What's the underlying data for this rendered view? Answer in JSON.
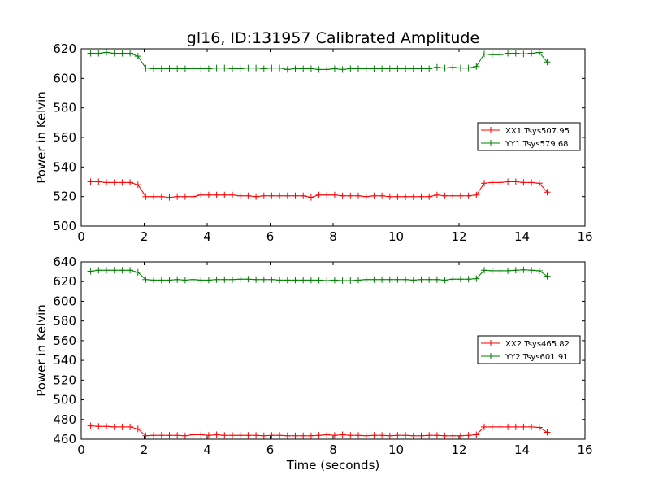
{
  "chart_data": [
    {
      "type": "line",
      "title": "gl16, ID:131957 Calibrated Amplitude",
      "xlabel": "",
      "ylabel": "Power in Kelvin",
      "xlim": [
        0,
        16
      ],
      "ylim": [
        500,
        620
      ],
      "xticks": [
        "0",
        "2",
        "4",
        "6",
        "8",
        "10",
        "12",
        "14",
        "16"
      ],
      "yticks": [
        "500",
        "520",
        "540",
        "560",
        "580",
        "600",
        "620"
      ],
      "legend_position": "center-right",
      "x": [
        0.3,
        0.55,
        0.8,
        1.05,
        1.3,
        1.55,
        1.8,
        2.05,
        2.3,
        2.55,
        2.8,
        3.05,
        3.3,
        3.55,
        3.8,
        4.05,
        4.3,
        4.55,
        4.8,
        5.05,
        5.3,
        5.55,
        5.8,
        6.05,
        6.3,
        6.55,
        6.8,
        7.05,
        7.3,
        7.55,
        7.8,
        8.05,
        8.3,
        8.55,
        8.8,
        9.05,
        9.3,
        9.55,
        9.8,
        10.05,
        10.3,
        10.55,
        10.8,
        11.05,
        11.3,
        11.55,
        11.8,
        12.05,
        12.3,
        12.55,
        12.8,
        13.05,
        13.3,
        13.55,
        13.8,
        14.05,
        14.3,
        14.55,
        14.8
      ],
      "series": [
        {
          "name": "XX1 Tsys507.95",
          "color": "#ff0000",
          "values": [
            530,
            530,
            529.5,
            529.5,
            529.5,
            529.5,
            528,
            520,
            520,
            520,
            519.5,
            520,
            520,
            520,
            521,
            521,
            521,
            521,
            521,
            520.5,
            520.5,
            520,
            520.5,
            520.5,
            520.5,
            520.5,
            520.5,
            520.5,
            519.5,
            521,
            521,
            521,
            520.5,
            520.5,
            520.5,
            520,
            520.5,
            520.5,
            520,
            520,
            520,
            520,
            520,
            520,
            521,
            520.5,
            520.5,
            520.5,
            520.5,
            521,
            529,
            529.5,
            529.5,
            530,
            530,
            529.5,
            529.5,
            529,
            523
          ]
        },
        {
          "name": "YY1 Tsys579.68",
          "color": "#008000",
          "values": [
            617,
            617,
            617.5,
            617,
            617,
            617,
            615,
            607,
            606.5,
            606.5,
            606.5,
            606.5,
            606.5,
            606.5,
            606.5,
            606.5,
            607,
            607,
            606.5,
            606.5,
            607,
            607,
            606.5,
            607,
            607,
            606,
            606.5,
            606.5,
            606.5,
            606,
            606,
            606.5,
            606,
            606.5,
            606.5,
            606.5,
            606.5,
            606.5,
            606.5,
            606.5,
            606.5,
            606.5,
            606.5,
            606.5,
            607.5,
            607,
            607.5,
            607,
            607,
            608,
            616.5,
            616,
            616,
            617,
            617,
            616.5,
            617,
            617.5,
            611
          ]
        }
      ]
    },
    {
      "type": "line",
      "title": "",
      "xlabel": "Time (seconds)",
      "ylabel": "Power in Kelvin",
      "xlim": [
        0,
        16
      ],
      "ylim": [
        460,
        640
      ],
      "xticks": [
        "0",
        "2",
        "4",
        "6",
        "8",
        "10",
        "12",
        "14",
        "16"
      ],
      "yticks": [
        "460",
        "480",
        "500",
        "520",
        "540",
        "560",
        "580",
        "600",
        "620",
        "640"
      ],
      "legend_position": "center-right",
      "x": [
        0.3,
        0.55,
        0.8,
        1.05,
        1.3,
        1.55,
        1.8,
        2.05,
        2.3,
        2.55,
        2.8,
        3.05,
        3.3,
        3.55,
        3.8,
        4.05,
        4.3,
        4.55,
        4.8,
        5.05,
        5.3,
        5.55,
        5.8,
        6.05,
        6.3,
        6.55,
        6.8,
        7.05,
        7.3,
        7.55,
        7.8,
        8.05,
        8.3,
        8.55,
        8.8,
        9.05,
        9.3,
        9.55,
        9.8,
        10.05,
        10.3,
        10.55,
        10.8,
        11.05,
        11.3,
        11.55,
        11.8,
        12.05,
        12.3,
        12.55,
        12.8,
        13.05,
        13.3,
        13.55,
        13.8,
        14.05,
        14.3,
        14.55,
        14.8
      ],
      "series": [
        {
          "name": "XX2 Tsys465.82",
          "color": "#ff0000",
          "values": [
            473.5,
            473,
            473,
            472.5,
            472.5,
            472.5,
            470.5,
            463.5,
            464,
            464,
            464,
            464,
            463.5,
            464.5,
            464.5,
            464,
            464.5,
            464,
            464,
            464,
            464,
            464,
            463.5,
            464,
            464,
            463.5,
            463.5,
            463.5,
            463.5,
            464,
            464.5,
            464,
            464.5,
            464,
            464,
            463.5,
            464,
            464,
            463.5,
            464,
            464,
            463.5,
            463.5,
            464,
            464,
            463.5,
            463.5,
            463.5,
            464,
            464.5,
            472.5,
            472.5,
            472.5,
            472.5,
            472.5,
            472.5,
            472.5,
            472,
            467
          ]
        },
        {
          "name": "YY2 Tsys601.91",
          "color": "#008000",
          "values": [
            630.5,
            631.5,
            631.5,
            631.5,
            631.5,
            631.5,
            629.5,
            622,
            621.5,
            621.5,
            621.5,
            622,
            621.5,
            622,
            621.5,
            621.5,
            622,
            622,
            622,
            622.5,
            622.5,
            622,
            622,
            622,
            621.5,
            621.5,
            621.5,
            621.5,
            621.5,
            621.5,
            621,
            621.5,
            621,
            621,
            621.5,
            622,
            622,
            622,
            622,
            622,
            622,
            621.5,
            622,
            622,
            622,
            621.5,
            622.5,
            622.5,
            622.5,
            623,
            631.5,
            631,
            631,
            631,
            631.5,
            632,
            631.5,
            631,
            625.5
          ]
        }
      ]
    }
  ]
}
